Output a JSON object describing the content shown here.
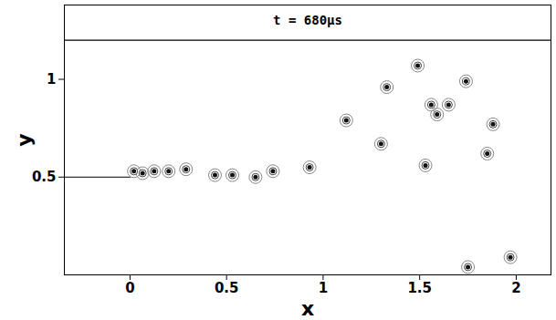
{
  "chart_data": {
    "type": "scatter",
    "title": "t = 680μs",
    "x_label": "x",
    "y_label": "y",
    "xlim": [
      -0.34,
      2.18
    ],
    "ylim": [
      0,
      1.38
    ],
    "xticks": [
      0,
      0.5,
      1,
      1.5,
      2
    ],
    "yticks": [
      0.5,
      1
    ],
    "color": "#111111",
    "marker": "circle",
    "x": [
      0.02,
      0.065,
      0.125,
      0.2,
      0.29,
      0.44,
      0.53,
      0.65,
      0.74,
      0.93,
      1.12,
      1.33,
      1.3,
      1.49,
      1.56,
      1.65,
      1.59,
      1.74,
      1.88,
      1.85,
      1.53,
      1.75,
      1.97
    ],
    "values": [
      0.53,
      0.52,
      0.53,
      0.53,
      0.54,
      0.51,
      0.51,
      0.5,
      0.53,
      0.55,
      0.79,
      0.96,
      0.67,
      1.07,
      0.87,
      0.87,
      0.82,
      0.99,
      0.77,
      0.62,
      0.56,
      0.04,
      0.09
    ],
    "segments": [
      {
        "x": [
          -0.34,
          0
        ],
        "y": [
          0.5,
          0.5
        ]
      },
      {
        "x": [
          -0.34,
          2.18
        ],
        "y": [
          1.2,
          1.2
        ]
      }
    ]
  }
}
